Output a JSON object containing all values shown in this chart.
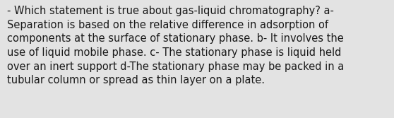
{
  "lines": [
    "- Which statement is true about gas-liquid chromatography? a-",
    "Separation is based on the relative difference in adsorption of",
    "components at the surface of stationary phase. b- It involves the",
    "use of liquid mobile phase. c- The stationary phase is liquid held",
    "over an inert support d-The stationary phase may be packed in a",
    "tubular column or spread as thin layer on a plate."
  ],
  "background_color": "#e3e3e3",
  "text_color": "#1a1a1a",
  "font_size": 10.5,
  "fig_width": 5.58,
  "fig_height": 1.67,
  "dpi": 100
}
